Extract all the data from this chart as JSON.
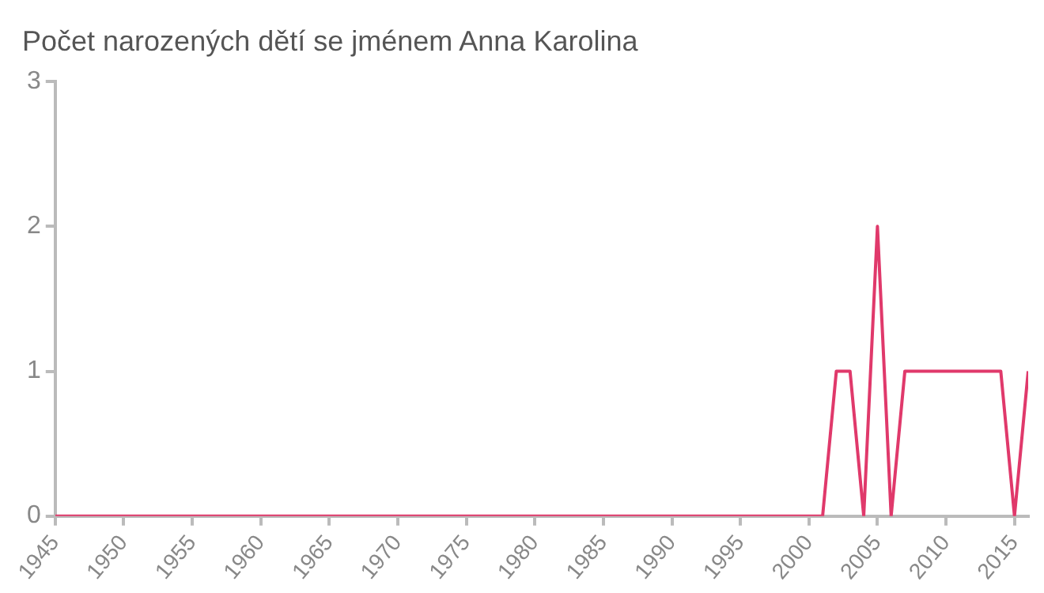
{
  "chart_data": {
    "type": "line",
    "title": "Počet narozených dětí se jménem Anna Karolina",
    "x": [
      1945,
      2001,
      2002,
      2003,
      2004,
      2005,
      2006,
      2007,
      2014,
      2015,
      2016
    ],
    "series": [
      {
        "color": "#e0396b",
        "values": [
          0,
          0,
          1,
          1,
          0,
          2,
          0,
          1,
          1,
          0,
          1
        ]
      }
    ],
    "xlim": [
      1945,
      2016
    ],
    "xticks": [
      1945,
      1950,
      1955,
      1960,
      1965,
      1970,
      1975,
      1980,
      1985,
      1990,
      1995,
      2000,
      2005,
      2010,
      2015
    ],
    "ylim": [
      0,
      3
    ],
    "yticks": [
      0,
      1,
      2,
      3
    ],
    "grid": false,
    "legend": false,
    "marker": "none",
    "line_style": "solid"
  }
}
